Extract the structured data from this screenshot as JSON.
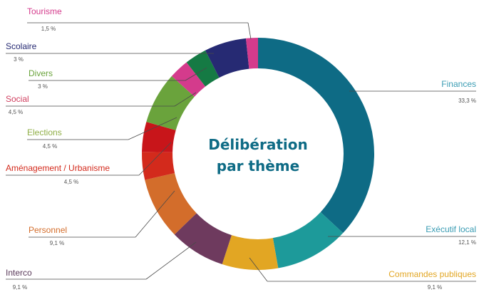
{
  "chart_data": {
    "type": "donut",
    "title": "Délibération par thème",
    "title_lines": [
      "Délibération",
      "par thème"
    ],
    "slices": [
      {
        "name": "Finances",
        "pct_label": "33,3 %",
        "value": 33.3,
        "color": "#0e6b85"
      },
      {
        "name": "Exécutif local",
        "pct_label": "12,1 %",
        "value": 12.1,
        "color": "#1d9a9a"
      },
      {
        "name": "Commandes publiques",
        "pct_label": "9,1 %",
        "value": 9.1,
        "color": "#e2a623"
      },
      {
        "name": "Interco",
        "pct_label": "9,1 %",
        "value": 9.1,
        "color": "#6e3a5e"
      },
      {
        "name": "Personnel",
        "pct_label": "9,1 %",
        "value": 9.1,
        "color": "#d36d2b"
      },
      {
        "name": "Aménagement / Urbanisme",
        "pct_label": "4,5 %",
        "value": 4.5,
        "color": "#d32a1c"
      },
      {
        "name": "Elections",
        "pct_label": "4,5 %",
        "value": 4.5,
        "color": "#c8151a"
      },
      {
        "name": "Social",
        "pct_label": "4,5 %",
        "value": 4.5,
        "color": "#6aa33c"
      },
      {
        "name": "Divers",
        "pct_label": "3 %",
        "value": 3,
        "color": "#d43b8c"
      },
      {
        "name": "Scolaire",
        "pct_label": "3 %",
        "value": 3,
        "color": "#157a44"
      },
      {
        "name": "Tourisme",
        "pct_label": "1,5 %",
        "value": 1.5,
        "color": "#262a73"
      }
    ],
    "label_colors": {
      "Finances": "#3a9cb3",
      "Exécutif local": "#3a9cb3",
      "Commandes publiques": "#e2a623",
      "Interco": "#5a3a5a",
      "Personnel": "#d36d2b",
      "Aménagement / Urbanisme": "#d32a1c",
      "Elections": "#8fae45",
      "Social": "#d04060",
      "Divers": "#6aa33c",
      "Scolaire": "#262a73",
      "Tourisme": "#d43b8c"
    },
    "extra_marks": [
      {
        "name": "tourisme-accent",
        "color": "#d43b8c"
      }
    ]
  }
}
